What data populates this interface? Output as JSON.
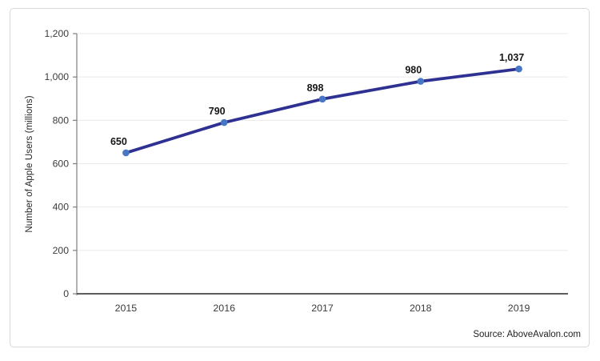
{
  "chart_data": {
    "type": "line",
    "title": "",
    "xlabel": "",
    "ylabel": "Number of Apple Users (millions)",
    "categories": [
      "2015",
      "2016",
      "2017",
      "2018",
      "2019"
    ],
    "series": [
      {
        "name": "Apple Users (millions)",
        "values": [
          650,
          790,
          898,
          980,
          1037
        ]
      }
    ],
    "data_labels": [
      "650",
      "790",
      "898",
      "980",
      "1,037"
    ],
    "ylim": [
      0,
      1200
    ],
    "ytick_step": 200,
    "ytick_labels": [
      "0",
      "200",
      "400",
      "600",
      "800",
      "1,000",
      "1,200"
    ],
    "grid": true,
    "legend_position": "none",
    "line_color": "#2E3192",
    "marker_color": "#4777C4",
    "gridline_color": "#EAEAEA",
    "axis_color": "#7F7F7F",
    "baseline_color": "#474747",
    "tick_label_color": "#3B3B3B",
    "data_label_color": "#161616"
  },
  "source_note": "Source: AboveAvalon.com"
}
